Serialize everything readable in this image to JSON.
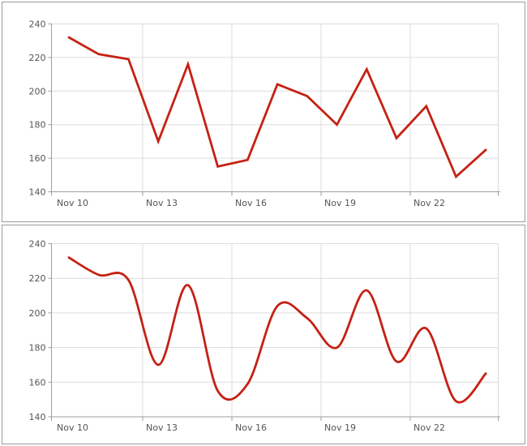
{
  "theme": {
    "background": "#ffffff",
    "panel_border_color": "#9c9c9c",
    "grid_color": "#dcdcdc",
    "axis_color": "#9e9e9e",
    "label_color": "#555555",
    "series_color": "#c52114"
  },
  "chart_data": [
    {
      "type": "line",
      "title": "",
      "xlabel": "",
      "ylabel": "",
      "x": [
        "Nov 10",
        "Nov 11",
        "Nov 12",
        "Nov 13",
        "Nov 14",
        "Nov 15",
        "Nov 16",
        "Nov 17",
        "Nov 18",
        "Nov 19",
        "Nov 20",
        "Nov 21",
        "Nov 22",
        "Nov 23",
        "Nov 24"
      ],
      "values": [
        232,
        222,
        219,
        170,
        216,
        155,
        159,
        204,
        197,
        180,
        213,
        172,
        191,
        149,
        165
      ],
      "ylim": [
        140,
        240
      ],
      "yticks": [
        240,
        220,
        200,
        180,
        160,
        140
      ],
      "xtick_labels": [
        "Nov 10",
        "Nov 13",
        "Nov 16",
        "Nov 19",
        "Nov 22"
      ],
      "grid": true,
      "legend": "none",
      "line_color": "#c52114"
    },
    {
      "type": "spline",
      "title": "",
      "xlabel": "",
      "ylabel": "",
      "x": [
        "Nov 10",
        "Nov 11",
        "Nov 12",
        "Nov 13",
        "Nov 14",
        "Nov 15",
        "Nov 16",
        "Nov 17",
        "Nov 18",
        "Nov 19",
        "Nov 20",
        "Nov 21",
        "Nov 22",
        "Nov 23",
        "Nov 24"
      ],
      "values": [
        232,
        222,
        219,
        170,
        216,
        155,
        159,
        204,
        197,
        180,
        213,
        172,
        191,
        149,
        165
      ],
      "ylim": [
        140,
        240
      ],
      "yticks": [
        240,
        220,
        200,
        180,
        160,
        140
      ],
      "xtick_labels": [
        "Nov 10",
        "Nov 13",
        "Nov 16",
        "Nov 19",
        "Nov 22"
      ],
      "grid": true,
      "legend": "none",
      "line_color": "#c52114"
    }
  ]
}
